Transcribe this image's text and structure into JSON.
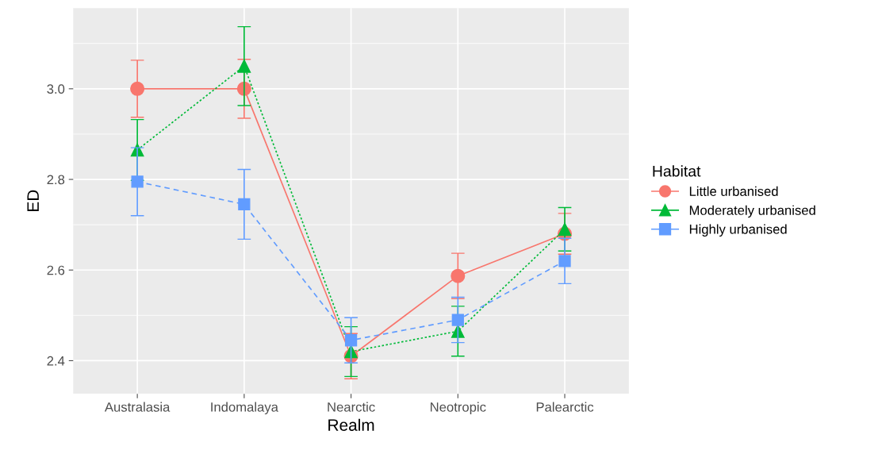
{
  "chart_data": {
    "type": "line",
    "xlabel": "Realm",
    "ylabel": "ED",
    "legend_title": "Habitat",
    "legend": "right",
    "grid": true,
    "categories": [
      "Australasia",
      "Indomalaya",
      "Nearctic",
      "Neotropic",
      "Palearctic"
    ],
    "ylim": [
      2.327,
      3.178
    ],
    "yticks": [
      {
        "value": 2.4,
        "label": "2.4"
      },
      {
        "value": 2.6,
        "label": "2.6"
      },
      {
        "value": 2.8,
        "label": "2.8"
      },
      {
        "value": 3.0,
        "label": "3.0"
      }
    ],
    "series": [
      {
        "name": "Little urbanised",
        "color": "#f8766d",
        "marker": "circle",
        "line_style": "solid",
        "values": [
          3.0,
          3.0,
          2.41,
          2.587,
          2.68
        ],
        "errors": [
          0.063,
          0.065,
          0.05,
          0.05,
          0.045
        ]
      },
      {
        "name": "Moderately urbanised",
        "color": "#00ba38",
        "marker": "triangle",
        "line_style": "dotted",
        "values": [
          2.865,
          3.05,
          2.42,
          2.465,
          2.69
        ],
        "errors": [
          0.067,
          0.087,
          0.055,
          0.055,
          0.048
        ]
      },
      {
        "name": "Highly urbanised",
        "color": "#619cff",
        "marker": "square",
        "line_style": "dashed",
        "values": [
          2.795,
          2.745,
          2.445,
          2.49,
          2.62
        ],
        "errors": [
          0.075,
          0.077,
          0.05,
          0.05,
          0.05
        ]
      }
    ]
  }
}
